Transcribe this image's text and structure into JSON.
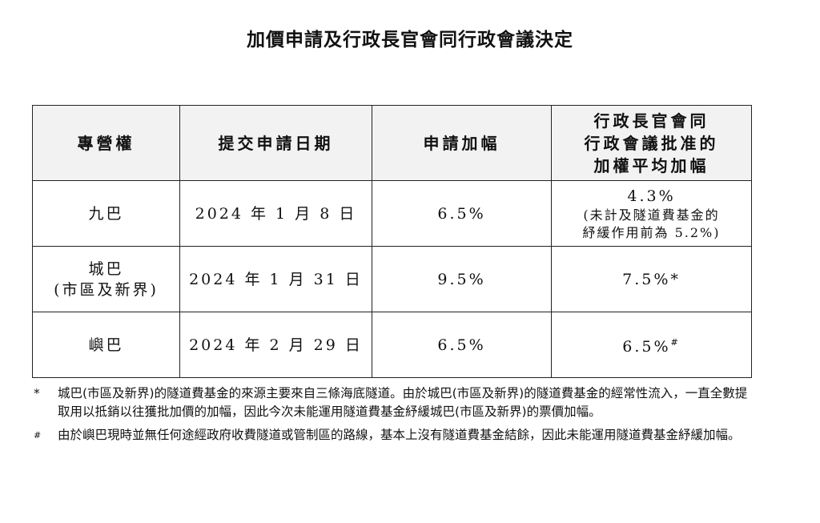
{
  "title": "加價申請及行政長官會同行政會議決定",
  "table": {
    "headers": {
      "franchise": "專營權",
      "date": "提交申請日期",
      "increase": "申請加幅",
      "approved_line1": "行政長官會同",
      "approved_line2": "行政會議批准的",
      "approved_line3": "加權平均加幅"
    },
    "rows": [
      {
        "franchise_line1": "九巴",
        "franchise_line2": "",
        "date": "2024 年 1 月 8 日",
        "increase": "6.5%",
        "approved": "4.3%",
        "approved_note_line1": "(未計及隧道費基金的",
        "approved_note_line2": "紓緩作用前為 5.2%)",
        "approved_mark": ""
      },
      {
        "franchise_line1": "城巴",
        "franchise_line2": "(市區及新界)",
        "date": "2024 年 1 月 31 日",
        "increase": "9.5%",
        "approved": "7.5%*",
        "approved_note_line1": "",
        "approved_note_line2": "",
        "approved_mark": ""
      },
      {
        "franchise_line1": "嶼巴",
        "franchise_line2": "",
        "date": "2024 年 2 月 29 日",
        "increase": "6.5%",
        "approved": "6.5%",
        "approved_note_line1": "",
        "approved_note_line2": "",
        "approved_mark": "#"
      }
    ]
  },
  "notes": [
    {
      "mark": "*",
      "text": "城巴(市區及新界)的隧道費基金的來源主要來自三條海底隧道。由於城巴(市區及新界)的隧道費基金的經常性流入，一直全數提取用以抵銷以往獲批加價的加幅，因此今次未能運用隧道費基金紓緩城巴(市區及新界)的票價加幅。"
    },
    {
      "mark": "#",
      "text": "由於嶼巴現時並無任何途經政府收費隧道或管制區的路線，基本上沒有隧道費基金結餘，因此未能運用隧道費基金紓緩加幅。"
    }
  ]
}
